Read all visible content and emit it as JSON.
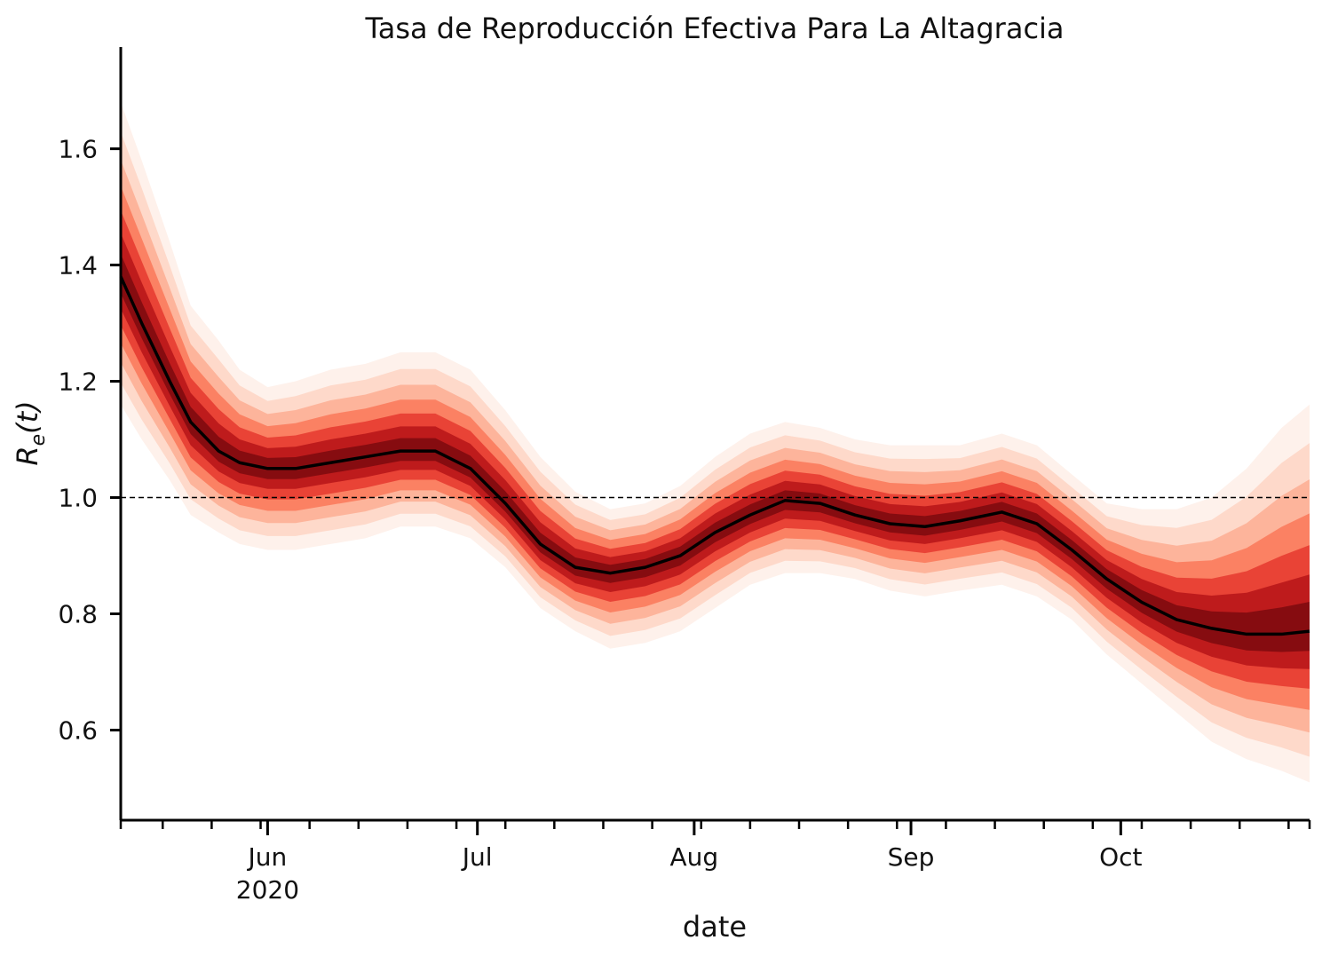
{
  "chart_data": {
    "type": "area",
    "title": "Tasa de Reproducción Efectiva Para La Altagracia",
    "xlabel": "date",
    "ylabel_base": "R",
    "ylabel_sub": "e",
    "ylabel_arg": "(t)",
    "ylim": [
      0.445,
      1.775
    ],
    "xlim": [
      "2020-05-11",
      "2020-10-28"
    ],
    "y_ticks": [
      {
        "value": 0.6,
        "label": "0.6"
      },
      {
        "value": 0.8,
        "label": "0.8"
      },
      {
        "value": 1.0,
        "label": "1.0"
      },
      {
        "value": 1.2,
        "label": "1.2"
      },
      {
        "value": 1.4,
        "label": "1.4"
      },
      {
        "value": 1.6,
        "label": "1.6"
      }
    ],
    "x_major_ticks": [
      {
        "date": "2020-06-01",
        "label": "Jun",
        "sublabel": "2020"
      },
      {
        "date": "2020-07-01",
        "label": "Jul",
        "sublabel": ""
      },
      {
        "date": "2020-08-01",
        "label": "Aug",
        "sublabel": ""
      },
      {
        "date": "2020-09-01",
        "label": "Sep",
        "sublabel": ""
      },
      {
        "date": "2020-10-01",
        "label": "Oct",
        "sublabel": ""
      }
    ],
    "x_minor_ticks": [
      "2020-05-11",
      "2020-05-17",
      "2020-05-24",
      "2020-05-31",
      "2020-06-07",
      "2020-06-14",
      "2020-06-21",
      "2020-06-28",
      "2020-07-05",
      "2020-07-12",
      "2020-07-19",
      "2020-07-26",
      "2020-08-02",
      "2020-08-09",
      "2020-08-16",
      "2020-08-23",
      "2020-08-30",
      "2020-09-06",
      "2020-09-13",
      "2020-09-20",
      "2020-09-27",
      "2020-10-04",
      "2020-10-11",
      "2020-10-18",
      "2020-10-25",
      "2020-10-28"
    ],
    "reference_line": {
      "y": 1.0,
      "style": "dashed"
    },
    "median_color": "#000000",
    "band_colors": [
      "#fee6da",
      "#fdc9b4",
      "#fc9f81",
      "#fa6b4c",
      "#e32f27",
      "#b31217",
      "#800b0f"
    ],
    "series": [
      {
        "x": [
          "2020-05-11",
          "2020-05-14",
          "2020-05-18",
          "2020-05-21",
          "2020-05-25",
          "2020-05-28",
          "2020-06-01",
          "2020-06-05",
          "2020-06-10",
          "2020-06-15",
          "2020-06-20",
          "2020-06-25",
          "2020-06-30",
          "2020-07-05",
          "2020-07-10",
          "2020-07-15",
          "2020-07-20",
          "2020-07-25",
          "2020-07-30",
          "2020-08-04",
          "2020-08-09",
          "2020-08-14",
          "2020-08-19",
          "2020-08-24",
          "2020-08-29",
          "2020-09-03",
          "2020-09-08",
          "2020-09-14",
          "2020-09-19",
          "2020-09-24",
          "2020-09-29",
          "2020-10-04",
          "2020-10-09",
          "2020-10-14",
          "2020-10-19",
          "2020-10-24",
          "2020-10-28"
        ],
        "median": [
          1.38,
          1.3,
          1.2,
          1.13,
          1.08,
          1.06,
          1.05,
          1.05,
          1.06,
          1.07,
          1.08,
          1.08,
          1.05,
          0.99,
          0.92,
          0.88,
          0.87,
          0.88,
          0.9,
          0.94,
          0.97,
          0.995,
          0.99,
          0.97,
          0.955,
          0.95,
          0.96,
          0.975,
          0.955,
          0.91,
          0.86,
          0.82,
          0.79,
          0.775,
          0.765,
          0.765,
          0.77
        ],
        "lower90": [
          1.16,
          1.1,
          1.03,
          0.97,
          0.94,
          0.92,
          0.91,
          0.91,
          0.92,
          0.93,
          0.95,
          0.95,
          0.93,
          0.88,
          0.81,
          0.77,
          0.74,
          0.75,
          0.77,
          0.81,
          0.85,
          0.87,
          0.87,
          0.86,
          0.84,
          0.83,
          0.84,
          0.85,
          0.83,
          0.79,
          0.73,
          0.68,
          0.63,
          0.58,
          0.55,
          0.53,
          0.51
        ],
        "upper90": [
          1.68,
          1.58,
          1.44,
          1.33,
          1.27,
          1.22,
          1.19,
          1.2,
          1.22,
          1.23,
          1.25,
          1.25,
          1.22,
          1.15,
          1.07,
          1.01,
          0.98,
          0.99,
          1.02,
          1.07,
          1.11,
          1.13,
          1.12,
          1.1,
          1.09,
          1.09,
          1.09,
          1.11,
          1.09,
          1.04,
          0.99,
          0.98,
          0.98,
          1.0,
          1.05,
          1.12,
          1.16
        ]
      }
    ]
  }
}
